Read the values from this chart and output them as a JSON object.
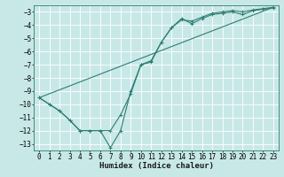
{
  "xlabel": "Humidex (Indice chaleur)",
  "bg_color": "#c8e8e8",
  "grid_color": "#ffffff",
  "line_color": "#2e7d72",
  "xlim": [
    -0.5,
    23.5
  ],
  "ylim": [
    -13.5,
    -2.5
  ],
  "xticks": [
    0,
    1,
    2,
    3,
    4,
    5,
    6,
    7,
    8,
    9,
    10,
    11,
    12,
    13,
    14,
    15,
    16,
    17,
    18,
    19,
    20,
    21,
    22,
    23
  ],
  "yticks": [
    -3,
    -4,
    -5,
    -6,
    -7,
    -8,
    -9,
    -10,
    -11,
    -12,
    -13
  ],
  "series1_x": [
    0,
    1,
    2,
    3,
    4,
    5,
    6,
    7,
    8,
    9,
    10,
    11,
    12,
    13,
    14,
    15,
    16,
    17,
    18,
    19,
    20,
    21,
    22,
    23
  ],
  "series1_y": [
    -9.5,
    -10.0,
    -10.5,
    -11.2,
    -12.0,
    -12.0,
    -12.0,
    -13.3,
    -12.0,
    -9.0,
    -7.0,
    -6.7,
    -5.3,
    -4.2,
    -3.5,
    -3.9,
    -3.5,
    -3.2,
    -3.1,
    -3.0,
    -3.2,
    -2.9,
    -2.8,
    -2.7
  ],
  "series2_x": [
    0,
    1,
    2,
    3,
    4,
    5,
    6,
    7,
    8,
    9,
    10,
    11,
    12,
    13,
    14,
    15,
    16,
    17,
    18,
    19,
    20,
    21,
    22,
    23
  ],
  "series2_y": [
    -9.5,
    -10.0,
    -10.5,
    -11.2,
    -12.0,
    -12.0,
    -12.0,
    -12.0,
    -10.8,
    -9.2,
    -7.0,
    -6.8,
    -5.3,
    -4.2,
    -3.6,
    -3.7,
    -3.4,
    -3.1,
    -3.0,
    -2.9,
    -3.0,
    -2.85,
    -2.75,
    -2.65
  ],
  "series3_x": [
    0,
    23
  ],
  "series3_y": [
    -9.5,
    -2.65
  ],
  "xlabel_fontsize": 6.5,
  "tick_fontsize": 5.5
}
